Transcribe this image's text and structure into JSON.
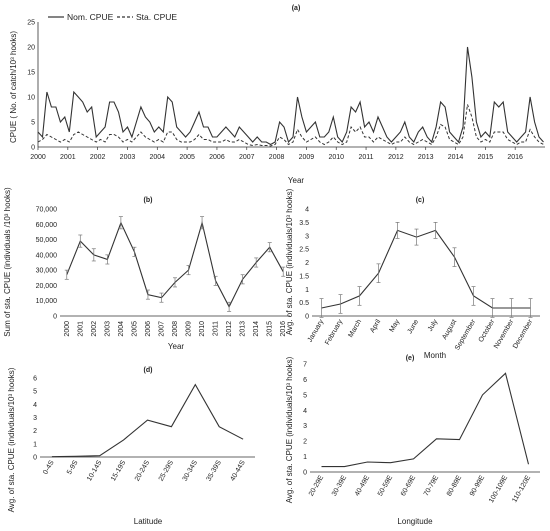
{
  "chart_data": [
    {
      "panel": "(a)",
      "type": "line",
      "xlabel": "Year",
      "ylabel": "CPUE ( No. of catch/10³ hooks)",
      "ylim": [
        0,
        25
      ],
      "yticks": [
        "0",
        "5",
        "10",
        "15",
        "20",
        "25"
      ],
      "xticks": [
        "2000",
        "2001",
        "2002",
        "2003",
        "2004",
        "2005",
        "2006",
        "2007",
        "2008",
        "2009",
        "2010",
        "2011",
        "2012",
        "2013",
        "2014",
        "2015",
        "2016"
      ],
      "legend": [
        "Nom. CPUE",
        "Sta. CPUE"
      ],
      "legend_position": "top-left",
      "series": [
        {
          "name": "Nom. CPUE",
          "style": "solid",
          "x": [
            2000.0,
            2000.15,
            2000.3,
            2000.45,
            2000.6,
            2000.75,
            2000.9,
            2001.05,
            2001.2,
            2001.35,
            2001.5,
            2001.65,
            2001.8,
            2001.95,
            2002.1,
            2002.25,
            2002.4,
            2002.55,
            2002.7,
            2002.85,
            2003.0,
            2003.15,
            2003.3,
            2003.45,
            2003.6,
            2003.75,
            2003.9,
            2004.05,
            2004.2,
            2004.35,
            2004.5,
            2004.65,
            2004.8,
            2004.95,
            2005.1,
            2005.25,
            2005.4,
            2005.55,
            2005.7,
            2005.85,
            2006.0,
            2006.15,
            2006.3,
            2006.45,
            2006.6,
            2006.75,
            2006.9,
            2007.05,
            2007.2,
            2007.35,
            2007.5,
            2007.65,
            2007.8,
            2007.95,
            2008.1,
            2008.25,
            2008.4,
            2008.55,
            2008.7,
            2008.85,
            2009.0,
            2009.15,
            2009.3,
            2009.45,
            2009.6,
            2009.75,
            2009.9,
            2010.05,
            2010.2,
            2010.35,
            2010.5,
            2010.65,
            2010.8,
            2010.95,
            2011.1,
            2011.25,
            2011.4,
            2011.55,
            2011.7,
            2011.85,
            2012.0,
            2012.15,
            2012.3,
            2012.45,
            2012.6,
            2012.75,
            2012.9,
            2013.05,
            2013.2,
            2013.35,
            2013.5,
            2013.65,
            2013.8,
            2013.95,
            2014.1,
            2014.25,
            2014.4,
            2014.55,
            2014.7,
            2014.85,
            2015.0,
            2015.15,
            2015.3,
            2015.45,
            2015.6,
            2015.75,
            2015.9,
            2016.05,
            2016.2,
            2016.35,
            2016.5,
            2016.65,
            2016.8,
            2016.95
          ],
          "y": [
            3,
            2,
            11,
            8,
            8,
            5,
            6,
            3,
            11,
            10,
            9,
            7,
            8,
            2,
            3,
            4,
            9,
            9,
            7,
            3,
            4,
            2,
            5,
            8,
            6,
            5,
            3,
            4,
            3,
            10,
            9,
            4,
            3,
            2,
            3,
            5,
            7,
            4,
            4,
            2,
            2,
            3,
            4,
            3,
            2,
            4,
            3,
            2,
            1,
            2,
            1,
            1,
            0.5,
            1,
            5,
            4,
            1,
            2,
            10,
            6,
            3,
            4,
            5,
            2,
            2,
            3,
            6,
            2,
            1,
            3,
            8,
            7,
            9,
            4,
            5,
            3,
            6,
            4,
            2,
            1,
            2,
            3,
            5,
            2,
            1,
            3,
            4,
            2,
            1,
            4,
            9,
            8,
            3,
            2,
            1,
            4,
            20,
            14,
            5,
            2,
            3,
            2,
            9,
            8,
            9,
            3,
            2,
            1,
            2,
            3,
            10,
            5,
            2,
            1
          ]
        },
        {
          "name": "Sta. CPUE",
          "style": "dashed",
          "x": [
            2000.0,
            2000.15,
            2000.3,
            2000.45,
            2000.6,
            2000.75,
            2000.9,
            2001.05,
            2001.2,
            2001.35,
            2001.5,
            2001.65,
            2001.8,
            2001.95,
            2002.1,
            2002.25,
            2002.4,
            2002.55,
            2002.7,
            2002.85,
            2003.0,
            2003.15,
            2003.3,
            2003.45,
            2003.6,
            2003.75,
            2003.9,
            2004.05,
            2004.2,
            2004.35,
            2004.5,
            2004.65,
            2004.8,
            2004.95,
            2005.1,
            2005.25,
            2005.4,
            2005.55,
            2005.7,
            2005.85,
            2006.0,
            2006.15,
            2006.3,
            2006.45,
            2006.6,
            2006.75,
            2006.9,
            2007.05,
            2007.2,
            2007.35,
            2007.5,
            2007.65,
            2007.8,
            2007.95,
            2008.1,
            2008.25,
            2008.4,
            2008.55,
            2008.7,
            2008.85,
            2009.0,
            2009.15,
            2009.3,
            2009.45,
            2009.6,
            2009.75,
            2009.9,
            2010.05,
            2010.2,
            2010.35,
            2010.5,
            2010.65,
            2010.8,
            2010.95,
            2011.1,
            2011.25,
            2011.4,
            2011.55,
            2011.7,
            2011.85,
            2012.0,
            2012.15,
            2012.3,
            2012.45,
            2012.6,
            2012.75,
            2012.9,
            2013.05,
            2013.2,
            2013.35,
            2013.5,
            2013.65,
            2013.8,
            2013.95,
            2014.1,
            2014.25,
            2014.4,
            2014.55,
            2014.7,
            2014.85,
            2015.0,
            2015.15,
            2015.3,
            2015.45,
            2015.6,
            2015.75,
            2015.9,
            2016.05,
            2016.2,
            2016.35,
            2016.5,
            2016.65,
            2016.8,
            2016.95
          ],
          "y": [
            1,
            1.5,
            2.5,
            2,
            1.5,
            1,
            1.5,
            1,
            2.5,
            3,
            2.5,
            2,
            1.5,
            1,
            1.5,
            1,
            2.5,
            2.5,
            2,
            1,
            1.5,
            1,
            2,
            3,
            2,
            1.5,
            1,
            1.5,
            1,
            3,
            3,
            1.5,
            1,
            1,
            1,
            1.5,
            2.5,
            1.5,
            1.5,
            1,
            1,
            1,
            1.5,
            1,
            1,
            1.5,
            1,
            0.5,
            0.3,
            0.5,
            0.3,
            0.3,
            0.2,
            0.5,
            2,
            1.5,
            0.5,
            1,
            3.5,
            2,
            1,
            1.5,
            2,
            1,
            0.5,
            1,
            2,
            1,
            0.5,
            1,
            4,
            3,
            4,
            2,
            2,
            1,
            2,
            1.5,
            1,
            0.5,
            1,
            1,
            2,
            1,
            0.5,
            1,
            1.5,
            1,
            0.5,
            2,
            4.5,
            4,
            1.5,
            1,
            0.5,
            2,
            8.5,
            6,
            2,
            1,
            1.5,
            1,
            3,
            3,
            3,
            1.5,
            1,
            0.5,
            1,
            1,
            3.5,
            2,
            1,
            0.5
          ]
        }
      ]
    },
    {
      "panel": "(b)",
      "type": "line",
      "xlabel": "Year",
      "ylabel": "Sum of sta. CPUE (individuals /10³ hooks)",
      "ylim": [
        0,
        70000
      ],
      "yticks": [
        "0",
        "10,000",
        "20,000",
        "30,000",
        "40,000",
        "50,000",
        "60,000",
        "70,000"
      ],
      "categories": [
        "2000",
        "2001",
        "2002",
        "2003",
        "2004",
        "2005",
        "2006",
        "2007",
        "2008",
        "2009",
        "2010",
        "2011",
        "2012",
        "2013",
        "2014",
        "2015",
        "2016"
      ],
      "values": [
        27000,
        49000,
        40000,
        37000,
        61000,
        42000,
        14000,
        12000,
        22000,
        30000,
        61000,
        23000,
        6000,
        24000,
        35000,
        45000,
        29000
      ],
      "errors": [
        3000,
        4000,
        4000,
        3000,
        4000,
        3000,
        3000,
        3000,
        3000,
        3000,
        4000,
        3000,
        3000,
        3000,
        3000,
        3000,
        3000
      ]
    },
    {
      "panel": "(c)",
      "type": "line",
      "xlabel": "Month",
      "ylabel": "Avg. of sta. CPUE (individuals/10³ hooks)",
      "ylim": [
        0,
        4
      ],
      "yticks": [
        "0",
        "0.5",
        "1",
        "1.5",
        "2",
        "2.5",
        "3",
        "3.5",
        "4"
      ],
      "categories": [
        "January",
        "February",
        "March",
        "April",
        "May",
        "June",
        "July",
        "August",
        "September",
        "October",
        "November",
        "December"
      ],
      "values": [
        0.3,
        0.45,
        0.75,
        1.6,
        3.2,
        2.95,
        3.2,
        2.2,
        0.75,
        0.3,
        0.3,
        0.3
      ],
      "errors": [
        0.35,
        0.35,
        0.35,
        0.35,
        0.3,
        0.3,
        0.3,
        0.35,
        0.35,
        0.35,
        0.35,
        0.35
      ]
    },
    {
      "panel": "(d)",
      "type": "line",
      "xlabel": "Latitude",
      "ylabel": "Avg. of sta. CPUE (indivduals/10³ hooks)",
      "ylim": [
        0,
        6
      ],
      "yticks": [
        "0",
        "1",
        "2",
        "3",
        "4",
        "5",
        "6"
      ],
      "categories": [
        "0-4S",
        "5-9S",
        "10-14S",
        "15-19S",
        "20-24S",
        "25-29S",
        "30-34S",
        "35-39S",
        "40-44S"
      ],
      "values": [
        0.02,
        0.05,
        0.1,
        1.3,
        2.8,
        2.3,
        5.5,
        2.3,
        1.35
      ]
    },
    {
      "panel": "(e)",
      "type": "line",
      "xlabel": "Longitude",
      "ylabel": "Avg. of sta. CPUE (individuals/10³ hooks)",
      "ylim": [
        0,
        7
      ],
      "yticks": [
        "0",
        "1",
        "2",
        "3",
        "4",
        "5",
        "6",
        "7"
      ],
      "categories": [
        "20-29E",
        "30-39E",
        "40-49E",
        "50-59E",
        "60-69E",
        "70-79E",
        "80-89E",
        "90-99E",
        "100-109E",
        "110-120E"
      ],
      "values": [
        0.35,
        0.35,
        0.65,
        0.6,
        0.85,
        2.15,
        2.1,
        5.0,
        6.4,
        0.5
      ]
    }
  ]
}
